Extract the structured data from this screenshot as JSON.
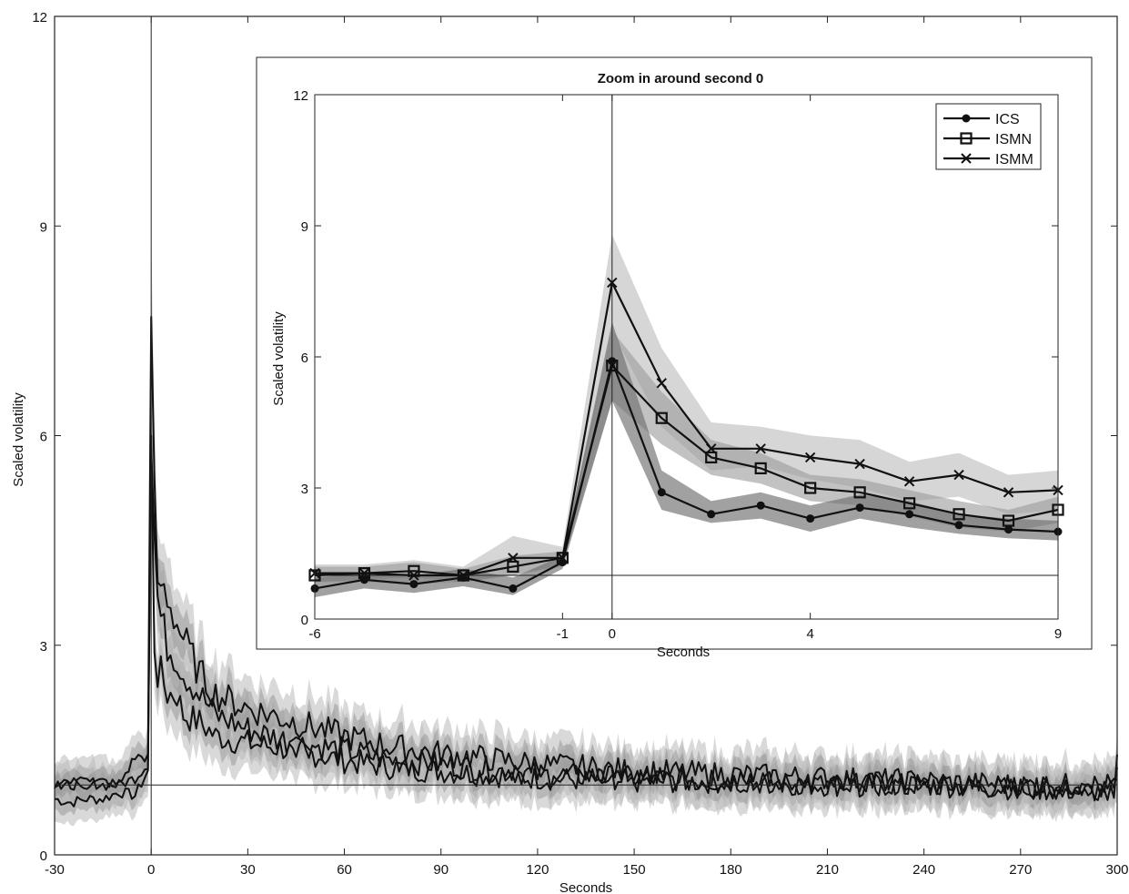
{
  "chart_data": [
    {
      "type": "line",
      "xlabel": "Seconds",
      "ylabel": "Scaled volatility",
      "xlim": [
        -30,
        300
      ],
      "ylim": [
        0,
        12
      ],
      "x_ticks": [
        -30,
        0,
        30,
        60,
        90,
        120,
        150,
        180,
        210,
        240,
        270,
        300
      ],
      "y_ticks": [
        0,
        3,
        6,
        9,
        12
      ],
      "reference_lines": {
        "vertical_x": 0,
        "horizontal_y": 1
      },
      "grid": false,
      "band_colors": [
        "#b9b9b9",
        "#8c8c8c"
      ],
      "line_color": "#111111",
      "series": [
        {
          "x": [
            -30,
            -25,
            -20,
            -15,
            -10,
            -5,
            -1,
            0,
            1,
            2,
            3,
            5,
            8,
            10,
            15,
            20,
            30,
            45,
            60,
            75,
            90,
            120,
            150,
            180,
            210,
            240,
            270,
            299,
            300
          ],
          "values": [
            0.8,
            0.75,
            0.8,
            0.8,
            0.9,
            0.85,
            1.2,
            6.0,
            2.9,
            2.4,
            2.6,
            2.3,
            2.3,
            2.0,
            1.9,
            1.7,
            1.6,
            1.5,
            1.35,
            1.25,
            1.2,
            1.1,
            1.05,
            1.05,
            1.0,
            1.0,
            0.95,
            0.95,
            1.6
          ]
        },
        {
          "x": [
            -30,
            -25,
            -20,
            -15,
            -10,
            -5,
            -1,
            0,
            1,
            2,
            3,
            5,
            8,
            10,
            15,
            20,
            30,
            45,
            60,
            75,
            90,
            120,
            150,
            180,
            210,
            240,
            270,
            299,
            300
          ],
          "values": [
            1.0,
            1.0,
            1.05,
            1.0,
            1.0,
            1.1,
            1.3,
            5.8,
            4.6,
            3.7,
            3.4,
            3.0,
            2.8,
            2.6,
            2.3,
            2.0,
            1.8,
            1.6,
            1.5,
            1.35,
            1.3,
            1.15,
            1.1,
            1.05,
            1.0,
            1.0,
            0.95,
            0.9,
            1.1
          ]
        },
        {
          "x": [
            -30,
            -25,
            -20,
            -15,
            -10,
            -5,
            -1,
            0,
            1,
            2,
            3,
            5,
            8,
            10,
            15,
            20,
            30,
            45,
            60,
            75,
            90,
            120,
            150,
            180,
            210,
            240,
            270,
            299,
            300
          ],
          "values": [
            1.0,
            1.05,
            1.0,
            1.05,
            1.0,
            1.4,
            1.4,
            7.7,
            5.4,
            3.9,
            3.9,
            3.7,
            3.3,
            3.1,
            2.6,
            2.3,
            2.1,
            1.9,
            1.7,
            1.55,
            1.45,
            1.3,
            1.2,
            1.15,
            1.1,
            1.05,
            1.0,
            1.0,
            1.0
          ]
        }
      ]
    },
    {
      "type": "line",
      "title": "Zoom in around second 0",
      "xlabel": "Seconds",
      "ylabel": "Scaled volatility",
      "xlim": [
        -6,
        9
      ],
      "ylim": [
        0,
        12
      ],
      "x_ticks": [
        -6,
        -1,
        0,
        4,
        9
      ],
      "y_ticks": [
        0,
        3,
        6,
        9,
        12
      ],
      "reference_lines": {
        "vertical_x": 0,
        "horizontal_y": 1
      },
      "grid": false,
      "legend": "top-right",
      "x": [
        -6,
        -5,
        -4,
        -3,
        -2,
        -1,
        0,
        1,
        2,
        3,
        4,
        5,
        6,
        7,
        8,
        9
      ],
      "series": [
        {
          "name": "ICS",
          "marker": "circle",
          "values": [
            0.7,
            0.9,
            0.8,
            0.95,
            0.7,
            1.3,
            5.9,
            2.9,
            2.4,
            2.6,
            2.3,
            2.55,
            2.4,
            2.15,
            2.05,
            2.0
          ],
          "band_low": [
            0.5,
            0.7,
            0.6,
            0.75,
            0.55,
            1.15,
            5.0,
            2.5,
            2.2,
            2.3,
            2.0,
            2.3,
            2.1,
            1.95,
            1.85,
            1.8
          ],
          "band_high": [
            0.95,
            1.05,
            1.0,
            1.15,
            0.95,
            1.45,
            6.8,
            3.4,
            2.7,
            2.9,
            2.6,
            2.85,
            2.7,
            2.4,
            2.3,
            2.25
          ]
        },
        {
          "name": "ISMN",
          "marker": "square",
          "values": [
            1.0,
            1.05,
            1.1,
            1.0,
            1.2,
            1.4,
            5.8,
            4.6,
            3.7,
            3.45,
            3.0,
            2.9,
            2.65,
            2.4,
            2.25,
            2.5
          ],
          "band_low": [
            0.85,
            0.9,
            0.95,
            0.85,
            1.0,
            1.25,
            5.0,
            4.0,
            3.3,
            3.1,
            2.7,
            2.6,
            2.35,
            2.1,
            2.0,
            2.2
          ],
          "band_high": [
            1.2,
            1.2,
            1.3,
            1.15,
            1.45,
            1.55,
            6.6,
            5.2,
            4.1,
            3.8,
            3.3,
            3.2,
            2.95,
            2.7,
            2.5,
            2.8
          ]
        },
        {
          "name": "ISMM",
          "marker": "x",
          "values": [
            1.05,
            1.05,
            1.0,
            1.0,
            1.4,
            1.4,
            7.7,
            5.4,
            3.9,
            3.9,
            3.7,
            3.55,
            3.15,
            3.3,
            2.9,
            2.95
          ],
          "band_low": [
            0.85,
            0.85,
            0.8,
            0.85,
            1.0,
            1.2,
            6.6,
            4.4,
            3.4,
            3.5,
            3.2,
            3.0,
            2.7,
            2.8,
            2.4,
            2.5
          ],
          "band_high": [
            1.25,
            1.25,
            1.35,
            1.2,
            1.9,
            1.65,
            8.8,
            6.2,
            4.5,
            4.4,
            4.2,
            4.1,
            3.6,
            3.8,
            3.3,
            3.4
          ]
        }
      ]
    }
  ]
}
